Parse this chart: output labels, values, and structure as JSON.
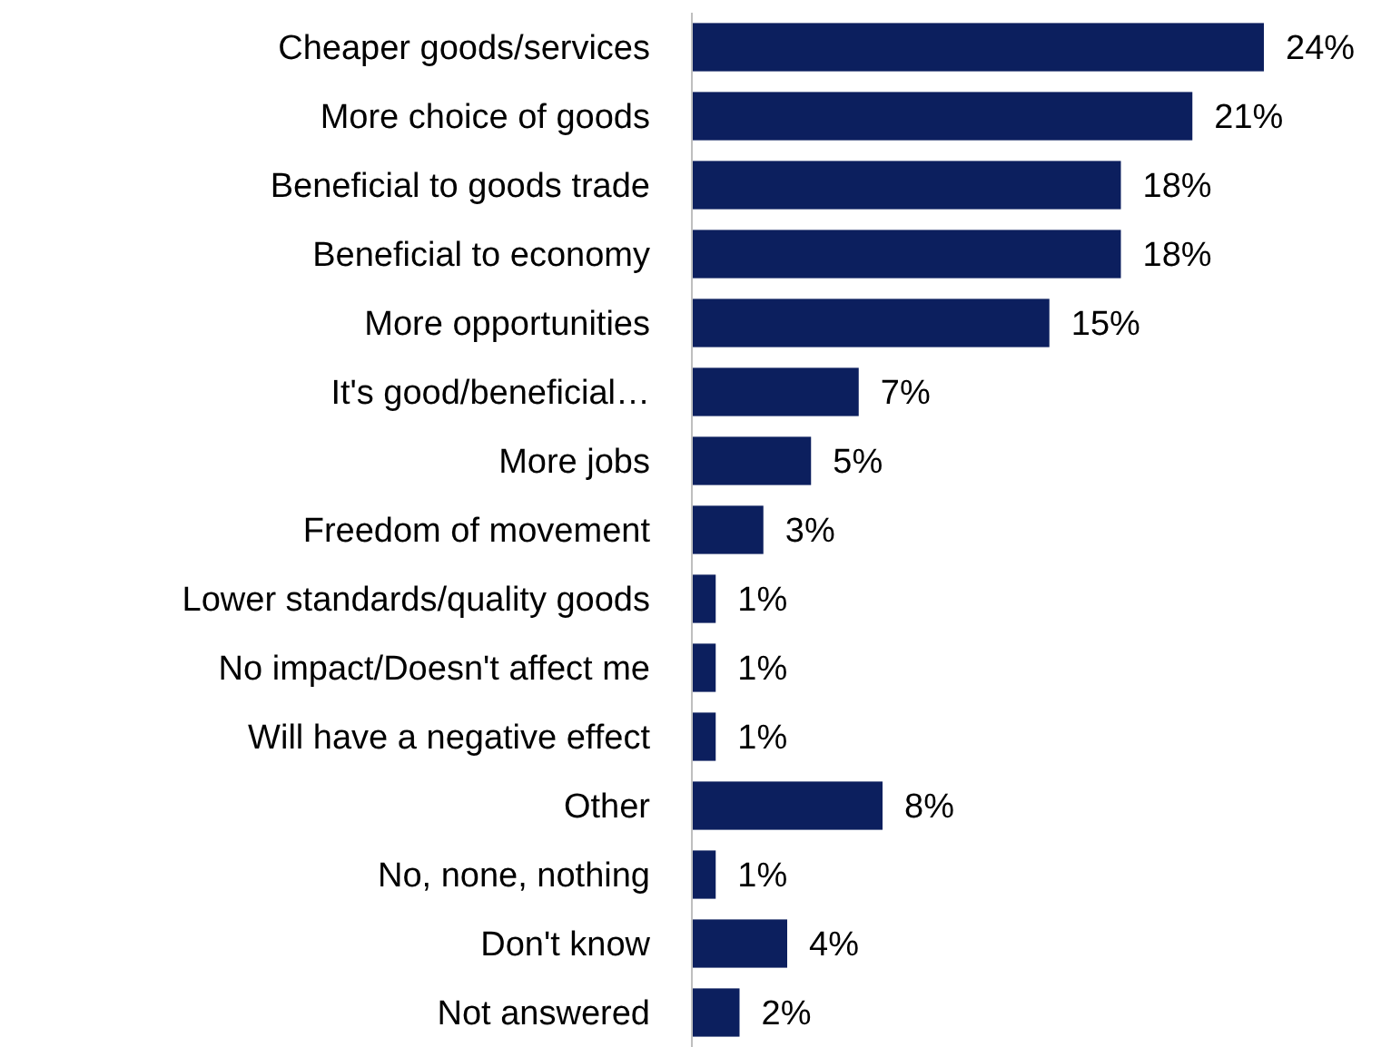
{
  "chart_data": {
    "type": "bar",
    "orientation": "horizontal",
    "categories": [
      "Cheaper goods/services",
      "More choice of goods",
      "Beneficial to goods trade",
      "Beneficial to economy",
      "More opportunities",
      "It's good/beneficial…",
      "More jobs",
      "Freedom of movement",
      "Lower standards/quality goods",
      "No impact/Doesn't affect me",
      "Will have a negative effect",
      "Other",
      "No, none, nothing",
      "Don't know",
      "Not answered"
    ],
    "values": [
      24,
      21,
      18,
      18,
      15,
      7,
      5,
      3,
      1,
      1,
      1,
      8,
      1,
      4,
      2
    ],
    "value_labels": [
      "24%",
      "21%",
      "18%",
      "18%",
      "15%",
      "7%",
      "5%",
      "3%",
      "1%",
      "1%",
      "1%",
      "8%",
      "1%",
      "4%",
      "2%"
    ],
    "color": "#0c1f5e"
  }
}
